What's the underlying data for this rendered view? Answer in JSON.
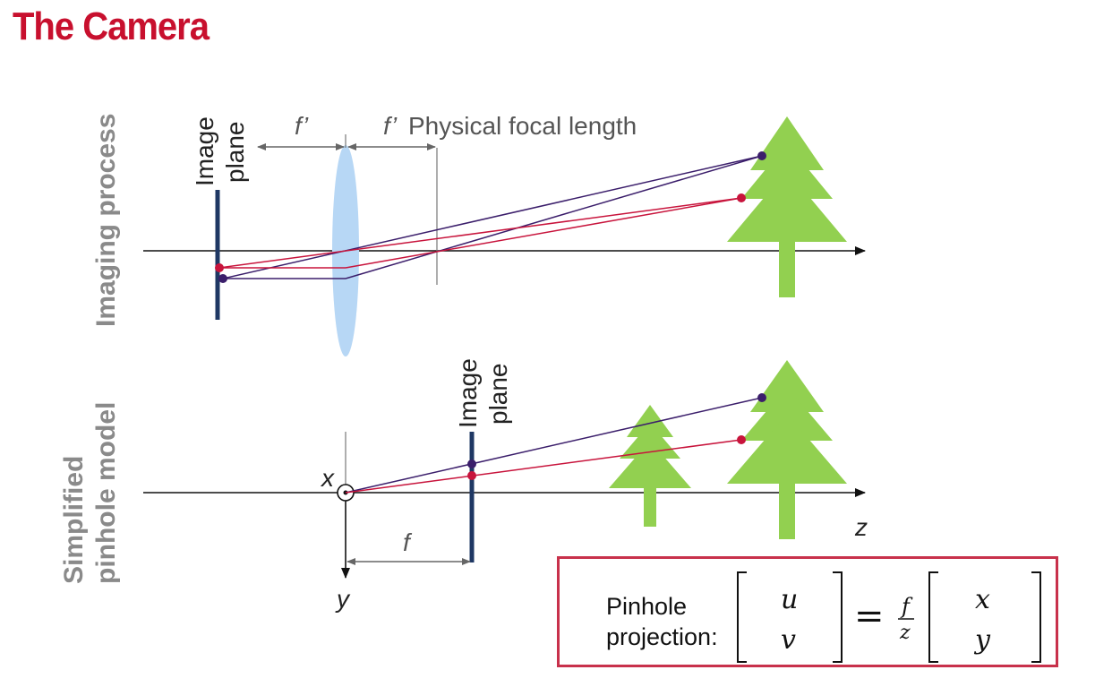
{
  "title": "The Camera",
  "top_section": {
    "side_label": "Imaging process",
    "image_plane_line1": "Image",
    "image_plane_line2": "plane",
    "f_prime": "f’",
    "f_prime2": "f’",
    "focal_caption": "Physical focal length"
  },
  "bottom_section": {
    "side_label_line1": "Simplified",
    "side_label_line2": "pinhole model",
    "image_plane_line1": "Image",
    "image_plane_line2": "plane",
    "x_label": "x",
    "y_label": "y",
    "z_label": "z",
    "f_label": "f"
  },
  "formula": {
    "label_line1": "Pinhole",
    "label_line2": "projection:",
    "u": "u",
    "v": "v",
    "equals": "=",
    "f": "f",
    "z": "z",
    "x": "x",
    "y": "y"
  },
  "colors": {
    "title": "#c8102e",
    "tree": "#92d050",
    "ray_purple": "#3b1e6b",
    "ray_red": "#c8143c",
    "image_plane": "#1f3864",
    "lens": "#b7d7f5"
  }
}
